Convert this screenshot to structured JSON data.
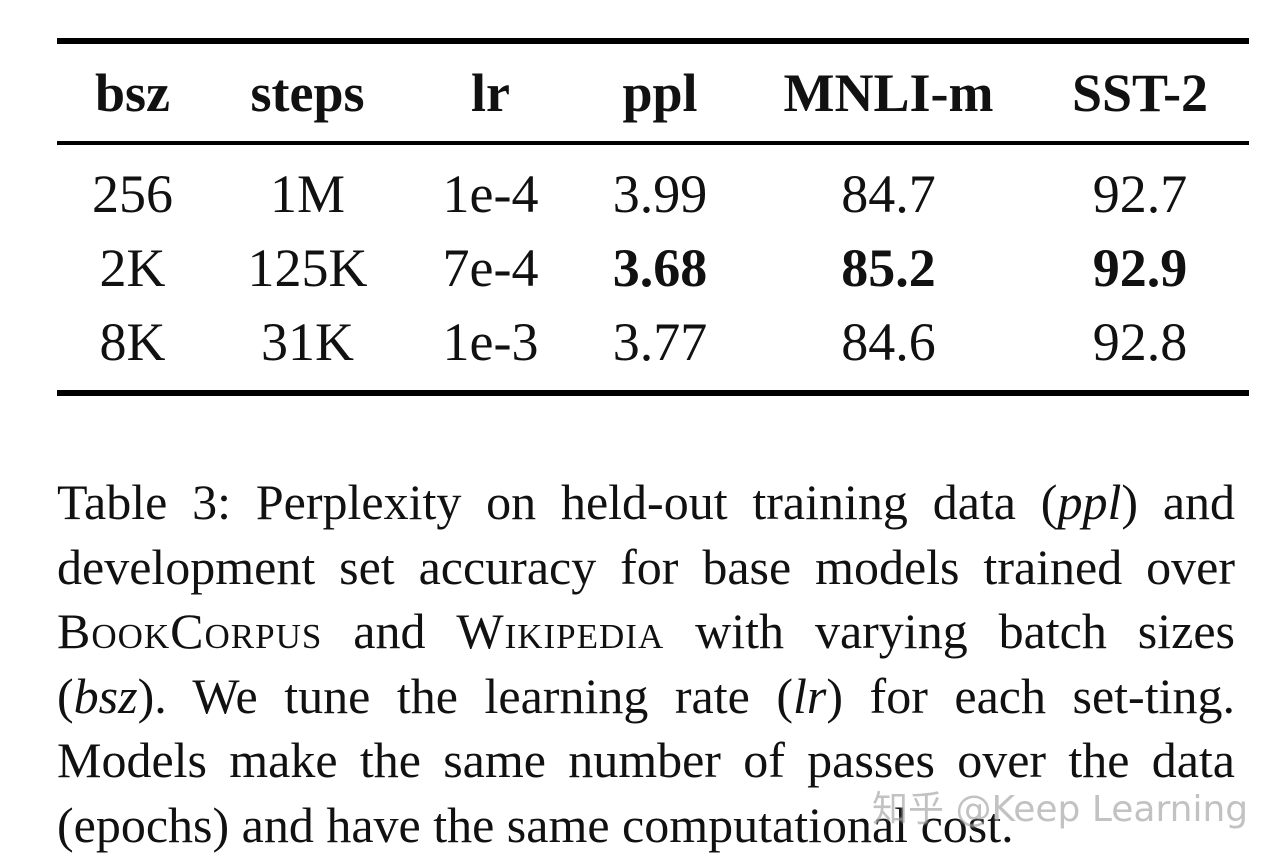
{
  "table": {
    "columns": [
      "bsz",
      "steps",
      "lr",
      "ppl",
      "MNLI-m",
      "SST-2"
    ],
    "rows": [
      [
        "256",
        "1M",
        "1e-4",
        "3.99",
        "84.7",
        "92.7"
      ],
      [
        "2K",
        "125K",
        "7e-4",
        "3.68",
        "85.2",
        "92.9"
      ],
      [
        "8K",
        "31K",
        "1e-3",
        "3.77",
        "84.6",
        "92.8"
      ]
    ],
    "bold_cells": [
      [
        1,
        3
      ],
      [
        1,
        4
      ],
      [
        1,
        5
      ]
    ]
  },
  "caption": {
    "part1": "Table 3: Perplexity on held-out training data (",
    "ppl": "ppl",
    "part2": ") and development set accuracy for base models trained over ",
    "bookcorpus": "BookCorpus",
    "and": " and ",
    "wikipedia": "Wikipedia",
    "part3": " with varying batch sizes (",
    "bsz": "bsz",
    "part4": "). We tune the learning rate (",
    "lr": "lr",
    "part5": ") for each set-ting. Models make the same number of passes over the data (epochs) and have the same computational cost."
  },
  "watermark": "知乎 @Keep Learning"
}
